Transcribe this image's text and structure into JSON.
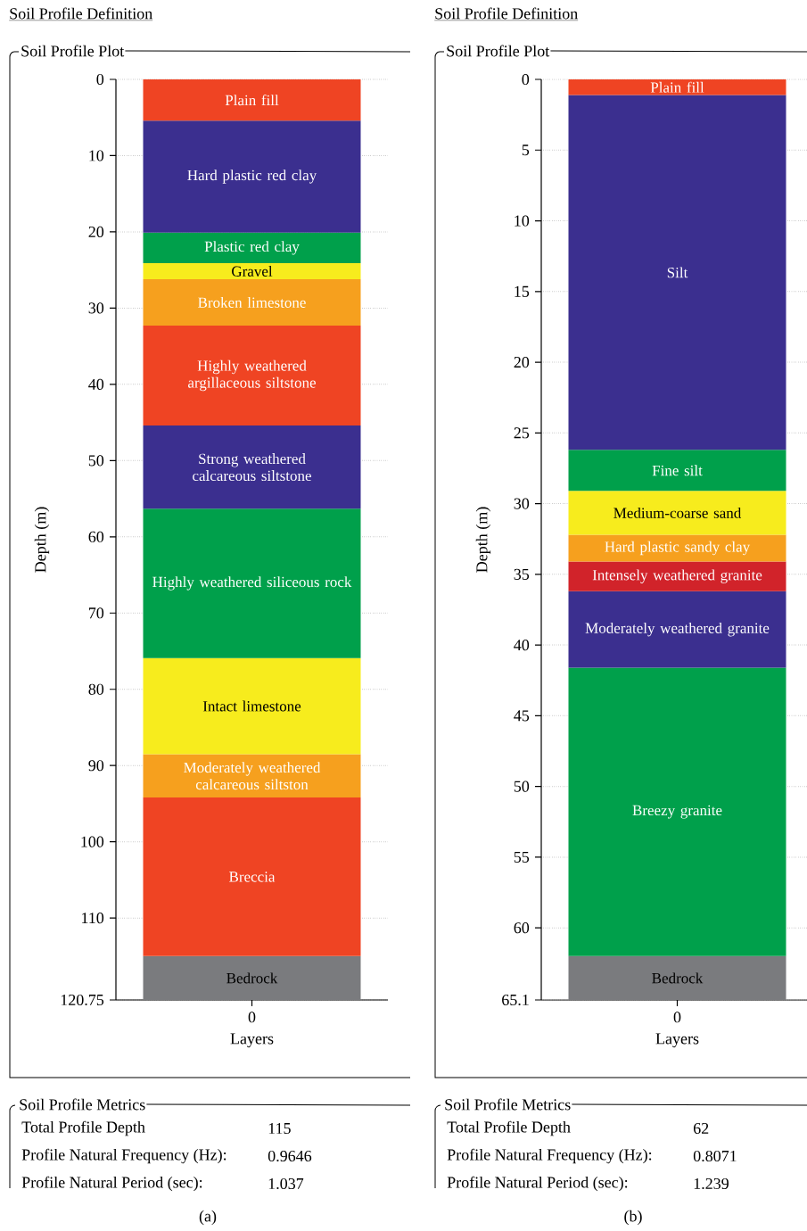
{
  "chart_data": [
    {
      "type": "bar",
      "stacked": true,
      "title": "Soil Profile Definition",
      "subtitle": "Soil Profile Plot",
      "categories": [
        "0"
      ],
      "xlabel": "Layers",
      "ylabel": "Depth (m)",
      "ylim": [
        120.75,
        0
      ],
      "yticks": [
        0,
        10,
        20,
        30,
        40,
        50,
        60,
        70,
        80,
        90,
        100,
        110,
        120.75
      ],
      "grid": "y",
      "series": [
        {
          "name": "Plain fill",
          "color": "#ef4423",
          "values": [
            5.4
          ]
        },
        {
          "name": "Hard plastic red clay",
          "color": "#3b2f8f",
          "values": [
            14.7
          ]
        },
        {
          "name": "Plastic red clay",
          "color": "#00a04b",
          "values": [
            4
          ]
        },
        {
          "name": "Gravel",
          "color": "#f7ec1d",
          "values": [
            2.1
          ]
        },
        {
          "name": "Broken limestone",
          "color": "#f6a01e",
          "values": [
            6.1
          ]
        },
        {
          "name": "Highly weathered argillaceous siltstone",
          "color": "#ef4423",
          "values": [
            13.1
          ]
        },
        {
          "name": "Strong weathered calcareous siltstone",
          "color": "#3b2f8f",
          "values": [
            10.9
          ]
        },
        {
          "name": "Highly weathered siliceous rock",
          "color": "#00a04b",
          "values": [
            19.6
          ]
        },
        {
          "name": "Intact limestone",
          "color": "#f7ec1d",
          "values": [
            12.6
          ]
        },
        {
          "name": "Moderately weathered calcareous siltston",
          "color": "#f6a01e",
          "values": [
            5.7
          ]
        },
        {
          "name": "Breccia",
          "color": "#ef4423",
          "values": [
            20.8
          ]
        },
        {
          "name": "Bedrock",
          "color": "#7a7b7e",
          "values": [
            5.75
          ]
        }
      ],
      "annotations": [
        "Soil Profile Metrics",
        "Total Profile Depth",
        "115",
        "Profile Natural Frequency (Hz):",
        "0.9646",
        "Profile Natural Period (sec):",
        "1.037",
        "(a)"
      ]
    },
    {
      "type": "bar",
      "stacked": true,
      "title": "Soil Profile Definition",
      "subtitle": "Soil Profile Plot",
      "categories": [
        "0"
      ],
      "xlabel": "Layers",
      "ylabel": "Depth (m)",
      "ylim": [
        65.1,
        0
      ],
      "yticks": [
        0,
        5,
        10,
        15,
        20,
        25,
        30,
        35,
        40,
        45,
        50,
        55,
        60,
        65.1
      ],
      "grid": "y",
      "series": [
        {
          "name": "Plain fill",
          "color": "#ef4423",
          "values": [
            1.1
          ]
        },
        {
          "name": "Silt",
          "color": "#3b2f8f",
          "values": [
            25.1
          ]
        },
        {
          "name": "Fine silt",
          "color": "#00a04b",
          "values": [
            2.9
          ]
        },
        {
          "name": "Medium-coarse sand",
          "color": "#f7ec1d",
          "values": [
            3.1
          ]
        },
        {
          "name": "Hard plastic sandy clay",
          "color": "#f6a01e",
          "values": [
            1.9
          ]
        },
        {
          "name": "Intensely weathered granite",
          "color": "#d1232a",
          "values": [
            2.1
          ]
        },
        {
          "name": "Moderately weathered granite",
          "color": "#3b2f8f",
          "values": [
            5.4
          ]
        },
        {
          "name": "Breezy granite",
          "color": "#00a04b",
          "values": [
            20.4
          ]
        },
        {
          "name": "Bedrock",
          "color": "#7a7b7e",
          "values": [
            3.1
          ]
        }
      ],
      "annotations": [
        "Soil Profile Metrics",
        "Total Profile Depth",
        "62",
        "Profile Natural Frequency (Hz):",
        "0.8071",
        "Profile Natural Period (sec):",
        "1.239",
        "(b)"
      ]
    }
  ]
}
